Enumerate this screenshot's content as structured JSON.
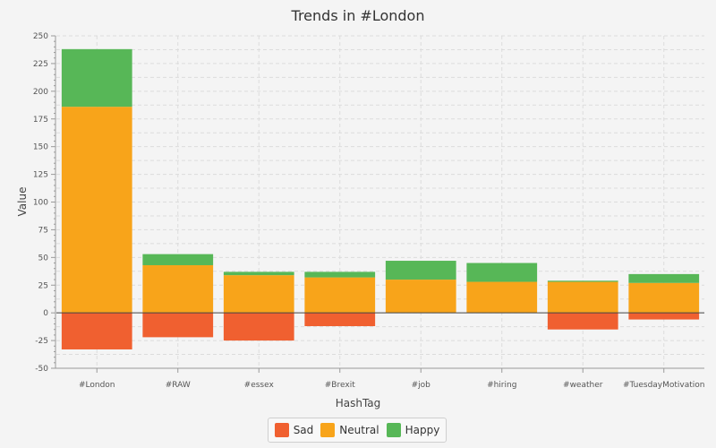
{
  "chart_data": {
    "type": "bar",
    "stacked": true,
    "title": "Trends in #London",
    "xlabel": "HashTag",
    "ylabel": "Value",
    "categories": [
      "#London",
      "#RAW",
      "#essex",
      "#Brexit",
      "#job",
      "#hiring",
      "#weather",
      "#TuesdayMotivation"
    ],
    "series": [
      {
        "name": "Sad",
        "color": "#f06030",
        "values": [
          -33,
          -22,
          -25,
          -12,
          0,
          0,
          -15,
          -6
        ]
      },
      {
        "name": "Neutral",
        "color": "#f8a41a",
        "values": [
          186,
          43,
          34,
          32,
          30,
          28,
          28,
          27
        ]
      },
      {
        "name": "Happy",
        "color": "#57b757",
        "values": [
          52,
          10,
          3,
          5,
          17,
          17,
          1,
          8
        ]
      }
    ],
    "ylim": [
      -50,
      250
    ],
    "yticks": [
      -50,
      -25,
      0,
      25,
      50,
      75,
      100,
      125,
      150,
      175,
      200,
      225,
      250
    ],
    "grid": true,
    "legend_position": "bottom"
  }
}
